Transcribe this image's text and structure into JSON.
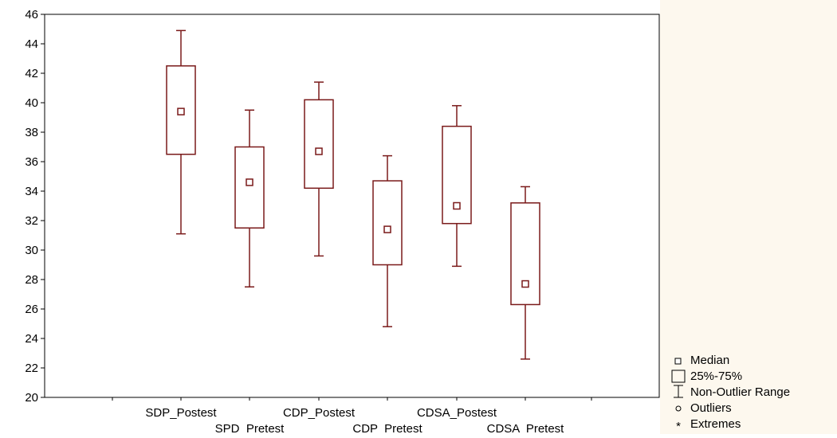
{
  "chart_data": {
    "type": "boxplot",
    "categories": [
      "SDP_Postest",
      "SPD  Pretest",
      "CDP_Postest",
      "CDP  Pretest",
      "CDSA_Postest",
      "CDSA  Pretest"
    ],
    "boxes": [
      {
        "category": "SDP_Postest",
        "min": 31.1,
        "q1": 36.5,
        "median": 39.4,
        "q3": 42.5,
        "max": 44.9
      },
      {
        "category": "SPD  Pretest",
        "min": 27.5,
        "q1": 31.5,
        "median": 34.6,
        "q3": 37.0,
        "max": 39.5
      },
      {
        "category": "CDP_Postest",
        "min": 29.6,
        "q1": 34.2,
        "median": 36.7,
        "q3": 40.2,
        "max": 41.4
      },
      {
        "category": "CDP  Pretest",
        "min": 24.8,
        "q1": 29.0,
        "median": 31.4,
        "q3": 34.7,
        "max": 36.4
      },
      {
        "category": "CDSA_Postest",
        "min": 28.9,
        "q1": 31.8,
        "median": 33.0,
        "q3": 38.4,
        "max": 39.8
      },
      {
        "category": "CDSA  Pretest",
        "min": 22.6,
        "q1": 26.3,
        "median": 27.7,
        "q3": 33.2,
        "max": 34.3
      }
    ],
    "ylim": [
      20,
      46
    ],
    "yticks": [
      "20",
      "22",
      "24",
      "26",
      "28",
      "30",
      "32",
      "34",
      "36",
      "38",
      "40",
      "42",
      "44",
      "46"
    ],
    "grid": false,
    "legend": {
      "placement": "bottom-right",
      "items": [
        "Median",
        "25%-75%",
        "Non-Outlier Range",
        "Outliers",
        "Extremes"
      ]
    },
    "colors": {
      "box": "#7a1a1a",
      "axis": "#000000",
      "plot_bg": "#ffffff",
      "outer_bg": "#fdf8ee"
    }
  }
}
